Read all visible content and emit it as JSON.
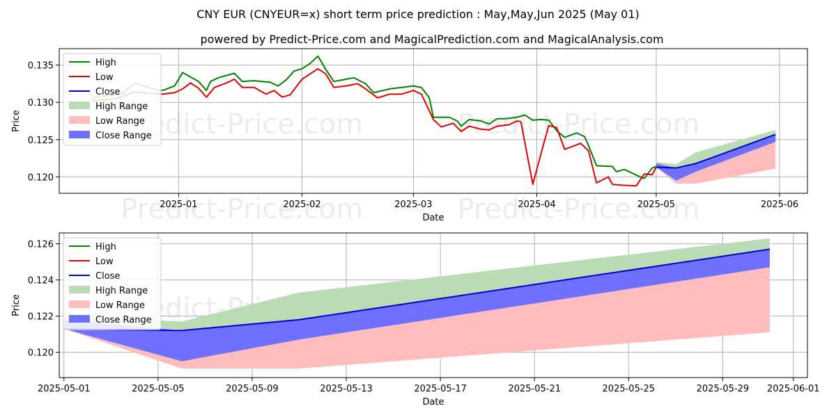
{
  "title": "CNY EUR (CNYEUR=x) short term price prediction : May,May,Jun 2025 (May 01)",
  "subtitle": "powered by Predict-Price.com and MagicalPrediction.com and MagicalAnalysis.com",
  "watermark": "Predict-Price.com",
  "colors": {
    "high": "#008000",
    "low": "#e00000",
    "close": "#0000cc",
    "high_range": "#b9dcb4",
    "low_range": "#ffbcbc",
    "close_range": "#7070ff",
    "grid": "#b0b0b0",
    "watermark": "#ececec"
  },
  "chart_data": [
    {
      "type": "line",
      "panel": "overview",
      "xlabel": "Date",
      "ylabel": "Price",
      "ylim": [
        0.1178,
        0.1372
      ],
      "xlim": [
        "2024-12-02",
        "2025-06-08"
      ],
      "grid": true,
      "legend_position": "top-left",
      "x_ticks": [
        "2025-01-01",
        "2025-02-01",
        "2025-03-01",
        "2025-04-01",
        "2025-05-01",
        "2025-06-01"
      ],
      "x_tick_labels": [
        "2025-01",
        "2025-02",
        "2025-03",
        "2025-04",
        "2025-05",
        "2025-06"
      ],
      "y_ticks": [
        0.12,
        0.125,
        0.13,
        0.135
      ],
      "y_tick_labels": [
        "0.120",
        "0.125",
        "0.130",
        "0.135"
      ],
      "legend": [
        "High",
        "Low",
        "Close",
        "High Range",
        "Low Range",
        "Close Range"
      ],
      "series": [
        {
          "name": "High",
          "points": [
            [
              "2024-12-10",
              0.1306
            ],
            [
              "2024-12-18",
              0.1312
            ],
            [
              "2024-12-21",
              0.1326
            ],
            [
              "2024-12-25",
              0.1319
            ],
            [
              "2024-12-28",
              0.1316
            ],
            [
              "2024-12-31",
              0.1322
            ],
            [
              "2025-01-02",
              0.134
            ],
            [
              "2025-01-06",
              0.1328
            ],
            [
              "2025-01-08",
              0.1316
            ],
            [
              "2025-01-09",
              0.1328
            ],
            [
              "2025-01-11",
              0.1333
            ],
            [
              "2025-01-15",
              0.1339
            ],
            [
              "2025-01-17",
              0.1328
            ],
            [
              "2025-01-20",
              0.1329
            ],
            [
              "2025-01-24",
              0.1327
            ],
            [
              "2025-01-26",
              0.1322
            ],
            [
              "2025-01-28",
              0.133
            ],
            [
              "2025-01-30",
              0.1342
            ],
            [
              "2025-02-01",
              0.1345
            ],
            [
              "2025-02-03",
              0.1352
            ],
            [
              "2025-02-05",
              0.1362
            ],
            [
              "2025-02-07",
              0.1344
            ],
            [
              "2025-02-09",
              0.1328
            ],
            [
              "2025-02-12",
              0.1331
            ],
            [
              "2025-02-14",
              0.1333
            ],
            [
              "2025-02-17",
              0.1325
            ],
            [
              "2025-02-19",
              0.1313
            ],
            [
              "2025-02-23",
              0.1318
            ],
            [
              "2025-02-26",
              0.132
            ],
            [
              "2025-03-01",
              0.1322
            ],
            [
              "2025-03-03",
              0.132
            ],
            [
              "2025-03-05",
              0.1306
            ],
            [
              "2025-03-06",
              0.128
            ],
            [
              "2025-03-10",
              0.128
            ],
            [
              "2025-03-12",
              0.1275
            ],
            [
              "2025-03-13",
              0.1268
            ],
            [
              "2025-03-15",
              0.1277
            ],
            [
              "2025-03-18",
              0.1275
            ],
            [
              "2025-03-20",
              0.1271
            ],
            [
              "2025-03-22",
              0.1278
            ],
            [
              "2025-03-24",
              0.1278
            ],
            [
              "2025-03-27",
              0.128
            ],
            [
              "2025-03-29",
              0.1283
            ],
            [
              "2025-03-31",
              0.1276
            ],
            [
              "2025-04-02",
              0.1277
            ],
            [
              "2025-04-04",
              0.1276
            ],
            [
              "2025-04-06",
              0.1262
            ],
            [
              "2025-04-08",
              0.1253
            ],
            [
              "2025-04-11",
              0.1259
            ],
            [
              "2025-04-13",
              0.1254
            ],
            [
              "2025-04-14",
              0.1242
            ],
            [
              "2025-04-16",
              0.1215
            ],
            [
              "2025-04-20",
              0.1214
            ],
            [
              "2025-04-21",
              0.1207
            ],
            [
              "2025-04-23",
              0.121
            ],
            [
              "2025-04-27",
              0.12
            ],
            [
              "2025-04-28",
              0.1198
            ],
            [
              "2025-04-30",
              0.1212
            ],
            [
              "2025-05-01",
              0.1214
            ]
          ]
        },
        {
          "name": "Low",
          "points": [
            [
              "2024-12-10",
              0.1302
            ],
            [
              "2024-12-16",
              0.1305
            ],
            [
              "2024-12-18",
              0.1308
            ],
            [
              "2024-12-21",
              0.1314
            ],
            [
              "2024-12-25",
              0.1312
            ],
            [
              "2024-12-28",
              0.1311
            ],
            [
              "2024-12-31",
              0.1313
            ],
            [
              "2025-01-02",
              0.1318
            ],
            [
              "2025-01-04",
              0.1326
            ],
            [
              "2025-01-06",
              0.1319
            ],
            [
              "2025-01-08",
              0.1307
            ],
            [
              "2025-01-10",
              0.132
            ],
            [
              "2025-01-13",
              0.1326
            ],
            [
              "2025-01-15",
              0.1331
            ],
            [
              "2025-01-17",
              0.132
            ],
            [
              "2025-01-20",
              0.132
            ],
            [
              "2025-01-23",
              0.1311
            ],
            [
              "2025-01-25",
              0.1316
            ],
            [
              "2025-01-27",
              0.1307
            ],
            [
              "2025-01-29",
              0.131
            ],
            [
              "2025-02-01",
              0.1331
            ],
            [
              "2025-02-03",
              0.1338
            ],
            [
              "2025-02-05",
              0.1345
            ],
            [
              "2025-02-07",
              0.1338
            ],
            [
              "2025-02-09",
              0.132
            ],
            [
              "2025-02-12",
              0.1322
            ],
            [
              "2025-02-15",
              0.1325
            ],
            [
              "2025-02-17",
              0.1318
            ],
            [
              "2025-02-20",
              0.1306
            ],
            [
              "2025-02-23",
              0.1311
            ],
            [
              "2025-02-26",
              0.1311
            ],
            [
              "2025-03-01",
              0.1316
            ],
            [
              "2025-03-03",
              0.1311
            ],
            [
              "2025-03-04",
              0.13
            ],
            [
              "2025-03-06",
              0.1277
            ],
            [
              "2025-03-08",
              0.1267
            ],
            [
              "2025-03-11",
              0.1272
            ],
            [
              "2025-03-13",
              0.1261
            ],
            [
              "2025-03-15",
              0.1268
            ],
            [
              "2025-03-18",
              0.1264
            ],
            [
              "2025-03-20",
              0.1263
            ],
            [
              "2025-03-22",
              0.1268
            ],
            [
              "2025-03-25",
              0.127
            ],
            [
              "2025-03-27",
              0.1275
            ],
            [
              "2025-03-28",
              0.1274
            ],
            [
              "2025-03-31",
              0.119
            ],
            [
              "2025-04-02",
              0.123
            ],
            [
              "2025-04-04",
              0.1269
            ],
            [
              "2025-04-06",
              0.1266
            ],
            [
              "2025-04-08",
              0.1237
            ],
            [
              "2025-04-10",
              0.1241
            ],
            [
              "2025-04-12",
              0.1245
            ],
            [
              "2025-04-14",
              0.1235
            ],
            [
              "2025-04-16",
              0.1192
            ],
            [
              "2025-04-19",
              0.12
            ],
            [
              "2025-04-20",
              0.119
            ],
            [
              "2025-04-22",
              0.1189
            ],
            [
              "2025-04-26",
              0.1188
            ],
            [
              "2025-04-28",
              0.1204
            ],
            [
              "2025-04-30",
              0.1203
            ],
            [
              "2025-05-01",
              0.1213
            ]
          ]
        },
        {
          "name": "Close",
          "points": [
            [
              "2025-05-01",
              0.1213
            ],
            [
              "2025-05-06",
              0.1212
            ],
            [
              "2025-05-11",
              0.1218
            ],
            [
              "2025-05-31",
              0.1257
            ]
          ]
        }
      ],
      "ranges": [
        {
          "name": "High Range",
          "x": [
            "2025-05-01",
            "2025-05-06",
            "2025-05-11",
            "2025-05-31"
          ],
          "upper": [
            0.122,
            0.1217,
            0.1233,
            0.1263
          ],
          "lower": [
            0.1213,
            0.1212,
            0.1218,
            0.1257
          ]
        },
        {
          "name": "Low Range",
          "x": [
            "2025-05-01",
            "2025-05-06",
            "2025-05-11",
            "2025-05-31"
          ],
          "upper": [
            0.1213,
            0.1195,
            0.1207,
            0.1247
          ],
          "lower": [
            0.1213,
            0.1191,
            0.1191,
            0.1211
          ]
        },
        {
          "name": "Close Range",
          "x": [
            "2025-05-01",
            "2025-05-06",
            "2025-05-11",
            "2025-05-31"
          ],
          "upper": [
            0.1218,
            0.1212,
            0.1218,
            0.1257
          ],
          "lower": [
            0.1213,
            0.1195,
            0.1207,
            0.1247
          ]
        }
      ]
    },
    {
      "type": "area",
      "panel": "forecast",
      "xlabel": "Date",
      "ylabel": "Price",
      "ylim": [
        0.1186,
        0.1266
      ],
      "xlim": [
        "2025-04-30.8",
        "2025-06-01.6"
      ],
      "grid": true,
      "legend_position": "top-left",
      "x_ticks": [
        "2025-05-01",
        "2025-05-05",
        "2025-05-09",
        "2025-05-13",
        "2025-05-17",
        "2025-05-21",
        "2025-05-25",
        "2025-05-29",
        "2025-06-01"
      ],
      "x_tick_labels": [
        "2025-05-01",
        "2025-05-05",
        "2025-05-09",
        "2025-05-13",
        "2025-05-17",
        "2025-05-21",
        "2025-05-25",
        "2025-05-29",
        "2025-06-01"
      ],
      "y_ticks": [
        0.12,
        0.122,
        0.124,
        0.126
      ],
      "y_tick_labels": [
        "0.120",
        "0.122",
        "0.124",
        "0.126"
      ],
      "legend": [
        "High",
        "Low",
        "Close",
        "High Range",
        "Low Range",
        "Close Range"
      ],
      "series": [
        {
          "name": "Close",
          "points": [
            [
              "2025-05-01",
              0.1213
            ],
            [
              "2025-05-06",
              0.1212
            ],
            [
              "2025-05-11",
              0.1218
            ],
            [
              "2025-05-31",
              0.1257
            ]
          ]
        }
      ],
      "ranges": [
        {
          "name": "High Range",
          "x": [
            "2025-05-01",
            "2025-05-06",
            "2025-05-11",
            "2025-05-31"
          ],
          "upper": [
            0.122,
            0.1217,
            0.1233,
            0.1263
          ],
          "lower": [
            0.1213,
            0.1212,
            0.1218,
            0.1257
          ]
        },
        {
          "name": "Low Range",
          "x": [
            "2025-05-01",
            "2025-05-06",
            "2025-05-11",
            "2025-05-31"
          ],
          "upper": [
            0.1213,
            0.1195,
            0.1207,
            0.1247
          ],
          "lower": [
            0.1213,
            0.1191,
            0.1191,
            0.1211
          ]
        },
        {
          "name": "Close Range",
          "x": [
            "2025-05-01",
            "2025-05-06",
            "2025-05-11",
            "2025-05-31"
          ],
          "upper": [
            0.1218,
            0.1212,
            0.1218,
            0.1257
          ],
          "lower": [
            0.1213,
            0.1195,
            0.1207,
            0.1247
          ]
        }
      ]
    }
  ]
}
